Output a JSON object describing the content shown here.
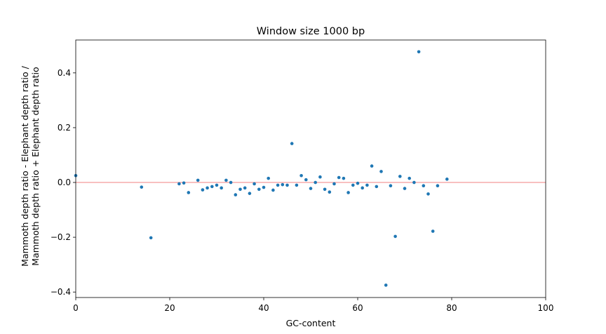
{
  "chart_data": {
    "type": "scatter",
    "title": "Window size 1000 bp",
    "xlabel": "GC-content",
    "ylabel_lines": [
      "Mammoth depth ratio - Elephant depth ratio /",
      "Mammoth depth ratio + Elephant depth ratio"
    ],
    "xlim": [
      0,
      100
    ],
    "ylim": [
      -0.42,
      0.52
    ],
    "xticks": [
      0,
      20,
      40,
      60,
      80,
      100
    ],
    "yticks": [
      -0.4,
      -0.2,
      0.0,
      0.2,
      0.4
    ],
    "grid": false,
    "reference_line": {
      "y": 0,
      "color": "#f08080"
    },
    "point_color": "#1f77b4",
    "x": [
      0,
      14,
      16,
      22,
      23,
      24,
      26,
      27,
      28,
      29,
      30,
      31,
      32,
      33,
      34,
      35,
      36,
      37,
      38,
      39,
      40,
      41,
      42,
      43,
      44,
      45,
      46,
      47,
      48,
      49,
      50,
      51,
      52,
      53,
      54,
      55,
      56,
      57,
      58,
      59,
      60,
      61,
      62,
      63,
      64,
      65,
      66,
      67,
      68,
      69,
      70,
      71,
      72,
      73,
      74,
      75,
      76,
      77,
      79
    ],
    "y": [
      0.025,
      -0.017,
      -0.202,
      -0.005,
      -0.002,
      -0.037,
      0.008,
      -0.027,
      -0.02,
      -0.015,
      -0.01,
      -0.02,
      0.008,
      0.0,
      -0.045,
      -0.025,
      -0.02,
      -0.04,
      -0.005,
      -0.025,
      -0.018,
      0.015,
      -0.028,
      -0.01,
      -0.008,
      -0.01,
      0.142,
      -0.01,
      0.025,
      0.01,
      -0.022,
      0.0,
      0.02,
      -0.025,
      -0.035,
      -0.005,
      0.018,
      0.015,
      -0.037,
      -0.01,
      -0.003,
      -0.02,
      -0.01,
      0.06,
      -0.015,
      0.04,
      -0.375,
      -0.012,
      -0.197,
      0.022,
      -0.022,
      0.015,
      0.0,
      0.477,
      -0.012,
      -0.042,
      -0.178,
      -0.012,
      0.012
    ]
  }
}
